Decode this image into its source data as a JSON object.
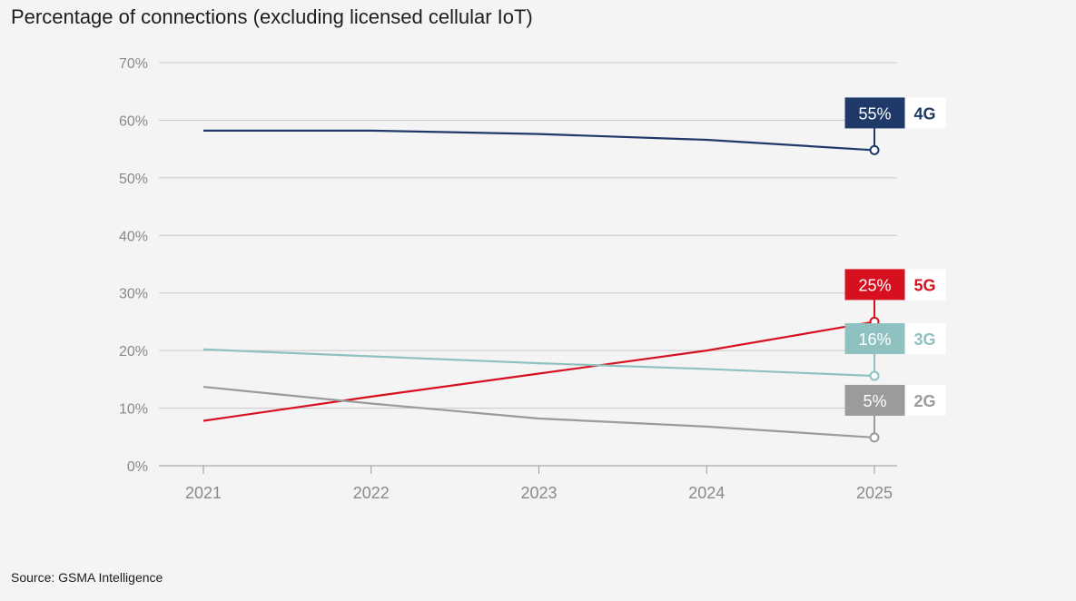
{
  "title": "Percentage of connections (excluding licensed cellular IoT)",
  "source": "Source: GSMA Intelligence",
  "chart_data": {
    "type": "line",
    "title": "Percentage of connections (excluding licensed cellular IoT)",
    "x": [
      "2021",
      "2022",
      "2023",
      "2024",
      "2025"
    ],
    "yticks": [
      "0%",
      "10%",
      "20%",
      "30%",
      "40%",
      "50%",
      "60%",
      "70%"
    ],
    "ylim": [
      0,
      70
    ],
    "grid": true,
    "series": [
      {
        "name": "4G",
        "values": [
          58.2,
          58.2,
          57.6,
          56.6,
          54.8
        ],
        "end_label": "55%",
        "color": "#1f3a68",
        "name_color": "#1f3a68"
      },
      {
        "name": "5G",
        "values": [
          7.8,
          12.0,
          16.0,
          20.0,
          25.0
        ],
        "end_label": "25%",
        "color": "#d7101f",
        "name_color": "#d7101f"
      },
      {
        "name": "3G",
        "values": [
          20.2,
          19.0,
          17.8,
          16.8,
          15.6
        ],
        "end_label": "16%",
        "color": "#8fc1c0",
        "name_color": "#8fc1c0"
      },
      {
        "name": "2G",
        "values": [
          13.7,
          10.8,
          8.2,
          6.8,
          4.9
        ],
        "end_label": "5%",
        "color": "#9b9b9b",
        "name_color": "#9b9b9b"
      }
    ]
  }
}
